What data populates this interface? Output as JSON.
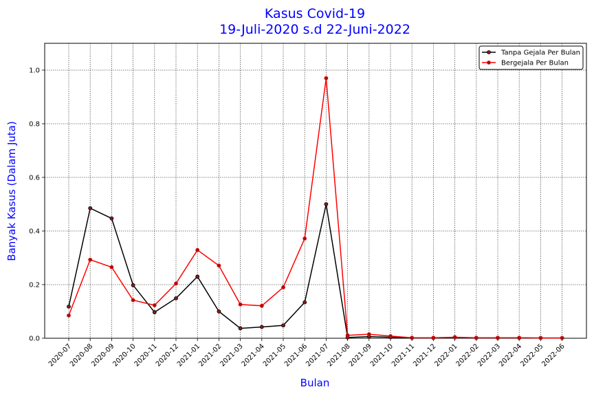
{
  "chart_data": {
    "type": "line",
    "title_line1": "Kasus Covid-19",
    "title_line2": "19-Juli-2020 s.d 22-Juni-2022",
    "xlabel": "Bulan",
    "ylabel": "Banyak Kasus (Dalam Juta)",
    "categories": [
      "2020-07",
      "2020-08",
      "2020-09",
      "2020-10",
      "2020-11",
      "2020-12",
      "2021-01",
      "2021-02",
      "2021-03",
      "2021-04",
      "2021-05",
      "2021-06",
      "2021-07",
      "2021-08",
      "2021-09",
      "2021-10",
      "2021-11",
      "2021-12",
      "2022-01",
      "2022-02",
      "2022-03",
      "2022-04",
      "2022-05",
      "2022-06"
    ],
    "ylim": [
      0,
      1.1
    ],
    "yticks": [
      "0.0",
      "0.2",
      "0.4",
      "0.6",
      "0.8",
      "1.0"
    ],
    "grid": true,
    "legend_position": "top-right",
    "series": [
      {
        "name": "Tanpa Gejala Per Bulan",
        "color": "#000000",
        "values": [
          0.118,
          0.485,
          0.447,
          0.198,
          0.097,
          0.149,
          0.23,
          0.1,
          0.037,
          0.042,
          0.048,
          0.134,
          0.5,
          0.003,
          0.006,
          0.004,
          0.001,
          0.001,
          0.003,
          0.001,
          0.001,
          0.001,
          0.001,
          0.001
        ]
      },
      {
        "name": "Bergejala Per Bulan",
        "color": "#ff0000",
        "values": [
          0.085,
          0.293,
          0.265,
          0.142,
          0.123,
          0.204,
          0.329,
          0.271,
          0.126,
          0.121,
          0.19,
          0.372,
          0.97,
          0.011,
          0.015,
          0.008,
          0.002,
          0.002,
          0.004,
          0.002,
          0.002,
          0.002,
          0.001,
          0.001
        ]
      }
    ]
  }
}
